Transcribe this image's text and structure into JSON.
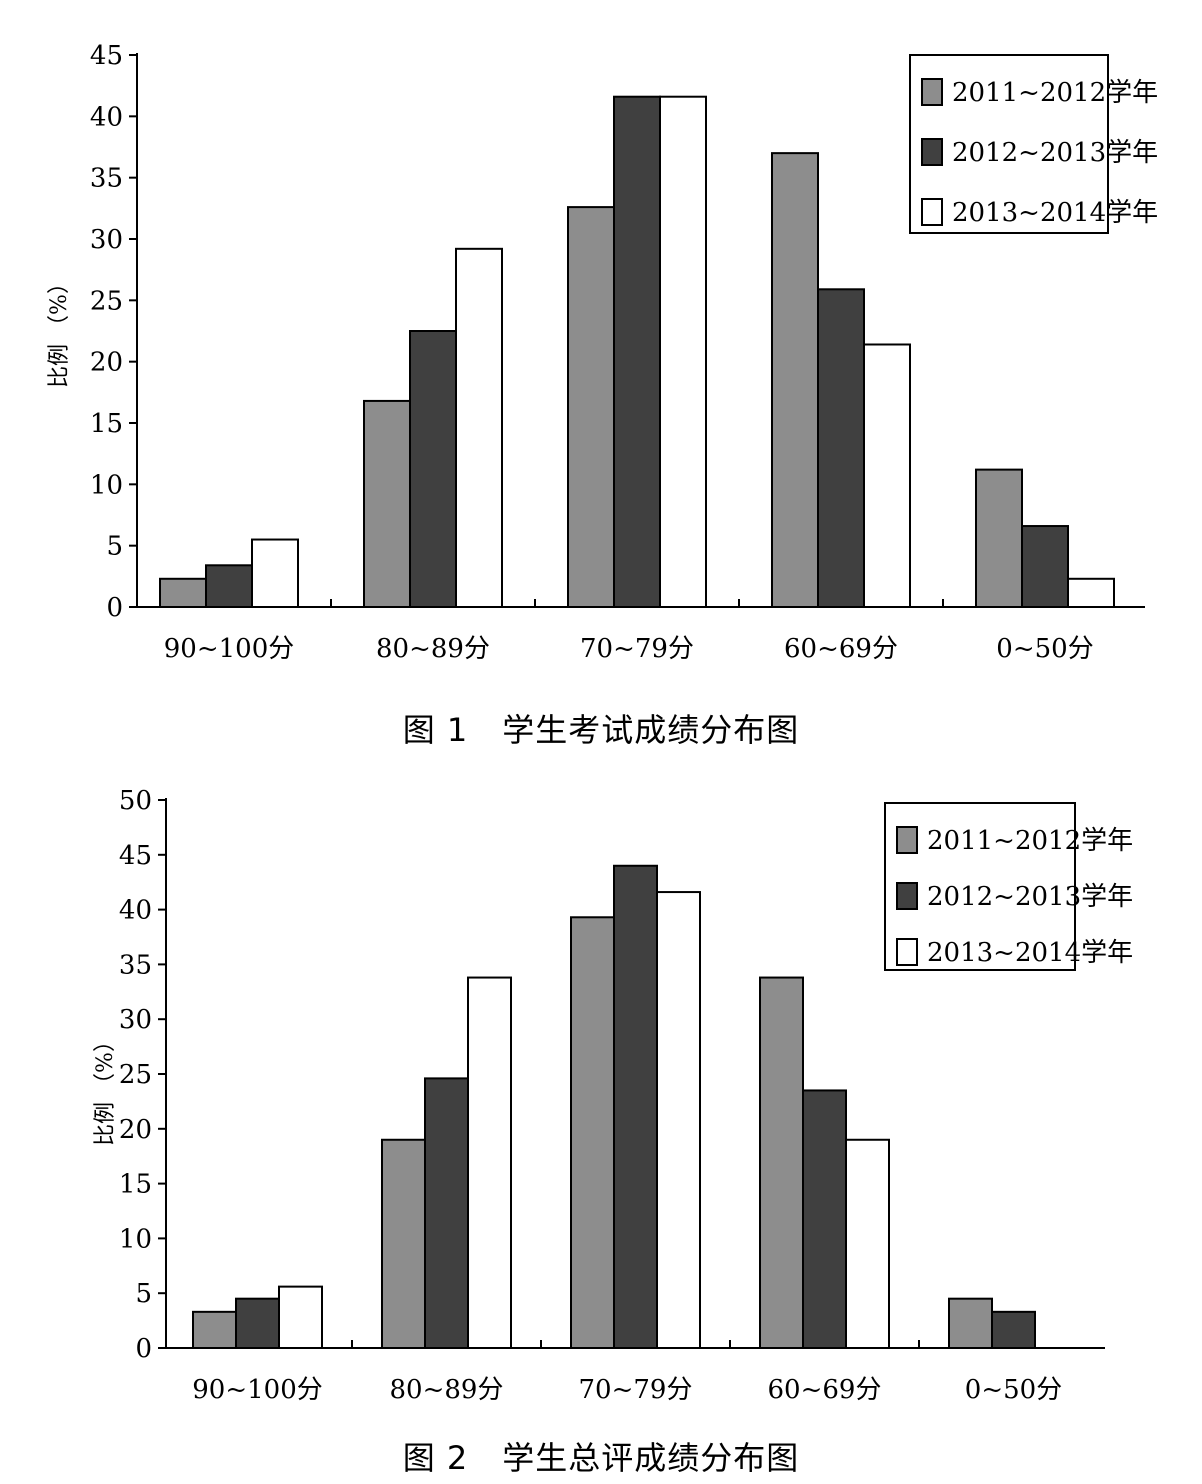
{
  "header_fragment": "",
  "figures": [
    {
      "caption_num": "图 1",
      "caption_title": "学生考试成绩分布图",
      "chart_data": {
        "type": "bar",
        "title": "图 1 学生考试成绩分布图",
        "ylabel": "比例 （%）",
        "xlabel": "",
        "ylim": [
          0,
          45
        ],
        "yticks": [
          0,
          5,
          10,
          15,
          20,
          25,
          30,
          35,
          40,
          45
        ],
        "categories": [
          "90~100分",
          "80~89分",
          "70~79分",
          "60~69分",
          "0~50分"
        ],
        "series": [
          {
            "name": "2011~2012学年",
            "color": "#8d8d8d",
            "values": [
              2.3,
              16.8,
              32.6,
              37.0,
              11.2
            ]
          },
          {
            "name": "2012~2013学年",
            "color": "#404040",
            "values": [
              3.4,
              22.5,
              41.6,
              25.9,
              6.6
            ]
          },
          {
            "name": "2013~2014学年",
            "color": "#ffffff",
            "values": [
              5.5,
              29.2,
              41.6,
              21.4,
              2.3
            ]
          }
        ],
        "legend": "top-right",
        "grid": false
      }
    },
    {
      "caption_num": "图 2",
      "caption_title": "学生总评成绩分布图",
      "chart_data": {
        "type": "bar",
        "title": "图 2 学生总评成绩分布图",
        "ylabel": "比例 （%）",
        "xlabel": "",
        "ylim": [
          0,
          50
        ],
        "yticks": [
          0,
          5,
          10,
          15,
          20,
          25,
          30,
          35,
          40,
          45,
          50
        ],
        "categories": [
          "90~100分",
          "80~89分",
          "70~79分",
          "60~69分",
          "0~50分"
        ],
        "series": [
          {
            "name": "2011~2012学年",
            "color": "#8d8d8d",
            "values": [
              3.3,
              19.0,
              39.3,
              33.8,
              4.5
            ]
          },
          {
            "name": "2012~2013学年",
            "color": "#404040",
            "values": [
              4.5,
              24.6,
              44.0,
              23.5,
              3.3
            ]
          },
          {
            "name": "2013~2014学年",
            "color": "#ffffff",
            "values": [
              5.6,
              33.8,
              41.6,
              19.0,
              0
            ]
          }
        ],
        "legend": "top-right",
        "grid": false
      }
    }
  ]
}
